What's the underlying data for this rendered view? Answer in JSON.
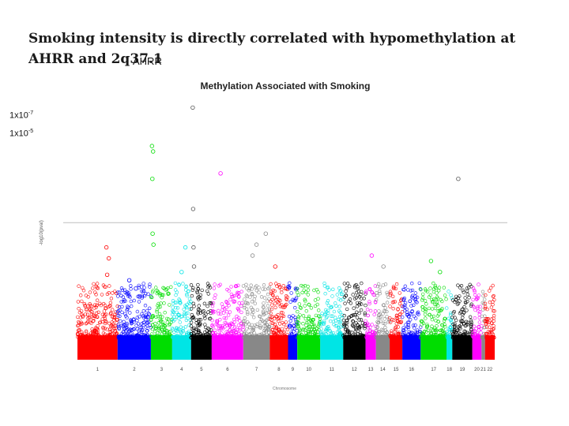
{
  "slide": {
    "title": "Smoking intensity is directly correlated with hypomethylation at AHRR and 2q37.1",
    "gene_label": "AHRR",
    "pvalue_labels": [
      {
        "mantissa": "1x10",
        "exponent": "-7"
      },
      {
        "mantissa": "1x10",
        "exponent": "-5"
      }
    ]
  },
  "chart_data": {
    "type": "scatter",
    "subtype": "manhattan",
    "title": "Methylation Associated with Smoking",
    "ylabel": "-log10(pval)",
    "xlabel": "Chromosome",
    "ylim": [
      0,
      9.5
    ],
    "significance_line": 5.0,
    "grid": false,
    "chromosomes": [
      {
        "label": "1",
        "color": "#ff0000",
        "size": 7
      },
      {
        "label": "2",
        "color": "#0000ff",
        "size": 5.8
      },
      {
        "label": "3",
        "color": "#00dd00",
        "size": 3.7
      },
      {
        "label": "4",
        "color": "#00e5e5",
        "size": 3.3
      },
      {
        "label": "5",
        "color": "#000000",
        "size": 3.6
      },
      {
        "label": "6",
        "color": "#ff00ff",
        "size": 5.5
      },
      {
        "label": "7",
        "color": "#888888",
        "size": 4.6
      },
      {
        "label": "8",
        "color": "#ff0000",
        "size": 3.2
      },
      {
        "label": "9",
        "color": "#0000ff",
        "size": 1.6
      },
      {
        "label": "10",
        "color": "#00dd00",
        "size": 4.0
      },
      {
        "label": "11",
        "color": "#00e5e5",
        "size": 4.0
      },
      {
        "label": "12",
        "color": "#000000",
        "size": 3.9
      },
      {
        "label": "13",
        "color": "#ff00ff",
        "size": 1.8
      },
      {
        "label": "14",
        "color": "#888888",
        "size": 2.4
      },
      {
        "label": "15",
        "color": "#ff0000",
        "size": 2.2
      },
      {
        "label": "16",
        "color": "#0000ff",
        "size": 3.2
      },
      {
        "label": "17",
        "color": "#00dd00",
        "size": 4.5
      },
      {
        "label": "18",
        "color": "#00e5e5",
        "size": 1.0
      },
      {
        "label": "19",
        "color": "#000000",
        "size": 3.5
      },
      {
        "label": "20",
        "color": "#ff00ff",
        "size": 1.6
      },
      {
        "label": "21",
        "color": "#888888",
        "size": 0.6
      },
      {
        "label": "22",
        "color": "#ff0000",
        "size": 1.7
      }
    ],
    "highlight_points": [
      {
        "chr": "1",
        "pos": 0.72,
        "y": 4.1
      },
      {
        "chr": "1",
        "pos": 0.78,
        "y": 3.7
      },
      {
        "chr": "1",
        "pos": 0.74,
        "y": 3.1
      },
      {
        "chr": "2",
        "pos": 0.35,
        "y": 2.9
      },
      {
        "chr": "2",
        "pos": 0.55,
        "y": 2.6
      },
      {
        "chr": "3",
        "pos": 0.05,
        "y": 7.8
      },
      {
        "chr": "3",
        "pos": 0.1,
        "y": 7.6
      },
      {
        "chr": "3",
        "pos": 0.07,
        "y": 6.6
      },
      {
        "chr": "3",
        "pos": 0.08,
        "y": 4.6
      },
      {
        "chr": "3",
        "pos": 0.12,
        "y": 4.2
      },
      {
        "chr": "4",
        "pos": 0.7,
        "y": 4.1
      },
      {
        "chr": "4",
        "pos": 0.5,
        "y": 3.2
      },
      {
        "chr": "5",
        "pos": 0.08,
        "y": 9.2
      },
      {
        "chr": "5",
        "pos": 0.1,
        "y": 5.5
      },
      {
        "chr": "5",
        "pos": 0.12,
        "y": 4.1
      },
      {
        "chr": "5",
        "pos": 0.14,
        "y": 3.4
      },
      {
        "chr": "6",
        "pos": 0.28,
        "y": 6.8
      },
      {
        "chr": "7",
        "pos": 0.5,
        "y": 4.2
      },
      {
        "chr": "7",
        "pos": 0.35,
        "y": 3.8
      },
      {
        "chr": "7",
        "pos": 0.85,
        "y": 4.6
      },
      {
        "chr": "8",
        "pos": 0.3,
        "y": 3.4
      },
      {
        "chr": "13",
        "pos": 0.6,
        "y": 3.8
      },
      {
        "chr": "14",
        "pos": 0.55,
        "y": 3.4
      },
      {
        "chr": "17",
        "pos": 0.4,
        "y": 3.6
      },
      {
        "chr": "17",
        "pos": 0.75,
        "y": 3.2
      },
      {
        "chr": "19",
        "pos": 0.3,
        "y": 6.6
      }
    ]
  }
}
